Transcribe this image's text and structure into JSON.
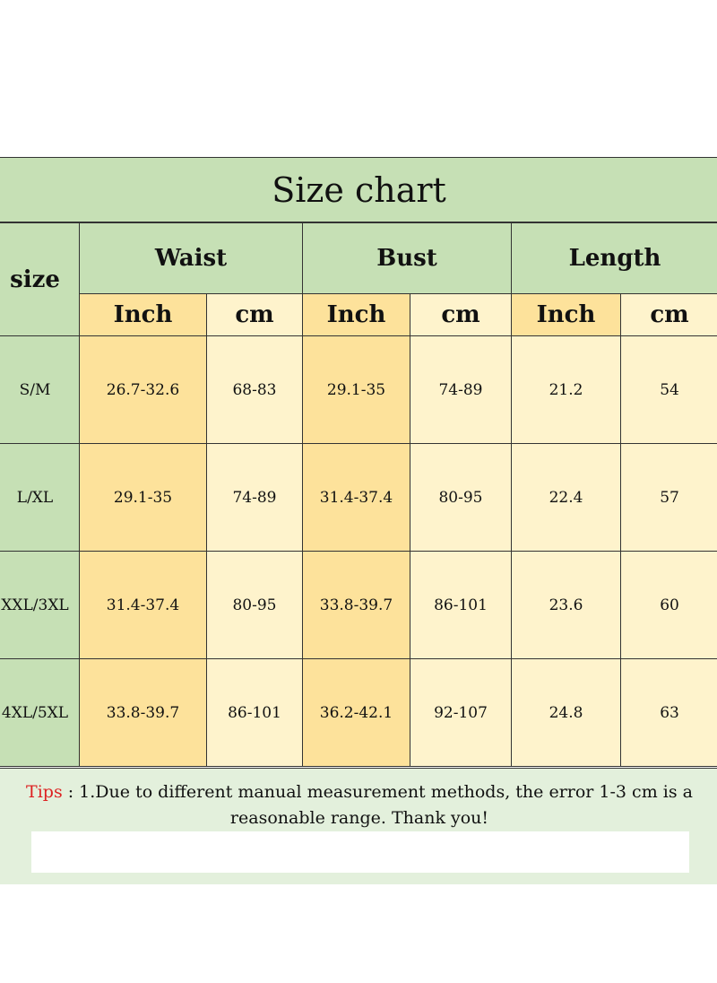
{
  "title": "Size chart",
  "headers": {
    "size": "size",
    "groups": [
      "Waist",
      "Bust",
      "Length"
    ],
    "units": [
      "Inch",
      "cm",
      "Inch",
      "cm",
      "Inch",
      "cm"
    ]
  },
  "rows": [
    {
      "size": "S/M",
      "values": [
        "26.7-32.6",
        "68-83",
        "29.1-35",
        "74-89",
        "21.2",
        "54"
      ]
    },
    {
      "size": "L/XL",
      "values": [
        "29.1-35",
        "74-89",
        "31.4-37.4",
        "80-95",
        "22.4",
        "57"
      ]
    },
    {
      "size": "XXL/3XL",
      "values": [
        "31.4-37.4",
        "80-95",
        "33.8-39.7",
        "86-101",
        "23.6",
        "60"
      ]
    },
    {
      "size": "4XL/5XL",
      "values": [
        "33.8-39.7",
        "86-101",
        "36.2-42.1",
        "92-107",
        "24.8",
        "63"
      ]
    }
  ],
  "tips": {
    "label": "Tips",
    "text": " : 1.Due to different manual measurement methods, the error 1-3 cm is a reasonable range. Thank you!"
  },
  "colors": {
    "green": "#c6e0b5",
    "yellow": "#fde29b",
    "cream": "#fef3cc",
    "tips_bg": "#e3f0dc",
    "tips_label": "#dd2222"
  }
}
